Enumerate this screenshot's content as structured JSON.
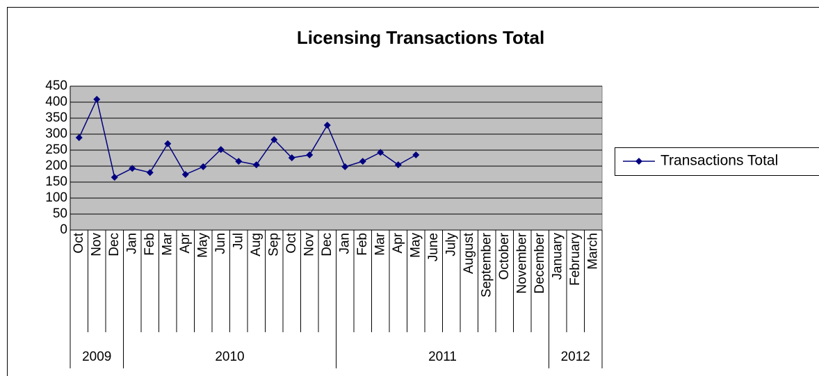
{
  "chart_data": {
    "type": "line",
    "title": "Licensing Transactions Total",
    "categories": [
      "Oct",
      "Nov",
      "Dec",
      "Jan",
      "Feb",
      "Mar",
      "Apr",
      "May",
      "Jun",
      "Jul",
      "Aug",
      "Sep",
      "Oct",
      "Nov",
      "Dec",
      "Jan",
      "Feb",
      "Mar",
      "Apr",
      "May",
      "June",
      "July",
      "August",
      "September",
      "October",
      "November",
      "December",
      "January",
      "February",
      "March"
    ],
    "year_groups": [
      {
        "label": "2009",
        "span": 3
      },
      {
        "label": "2010",
        "span": 12
      },
      {
        "label": "2011",
        "span": 12
      },
      {
        "label": "2012",
        "span": 3
      }
    ],
    "series": [
      {
        "name": "Transactions Total",
        "color": "#000080",
        "values": [
          289,
          409,
          165,
          193,
          180,
          270,
          174,
          198,
          252,
          215,
          204,
          283,
          226,
          235,
          328,
          198,
          215,
          243,
          204,
          235,
          null,
          null,
          null,
          null,
          null,
          null,
          null,
          null,
          null,
          null
        ]
      }
    ],
    "ylim": [
      0,
      450
    ],
    "yticks": [
      0,
      50,
      100,
      150,
      200,
      250,
      300,
      350,
      400,
      450
    ],
    "grid": true,
    "legend": "right"
  }
}
